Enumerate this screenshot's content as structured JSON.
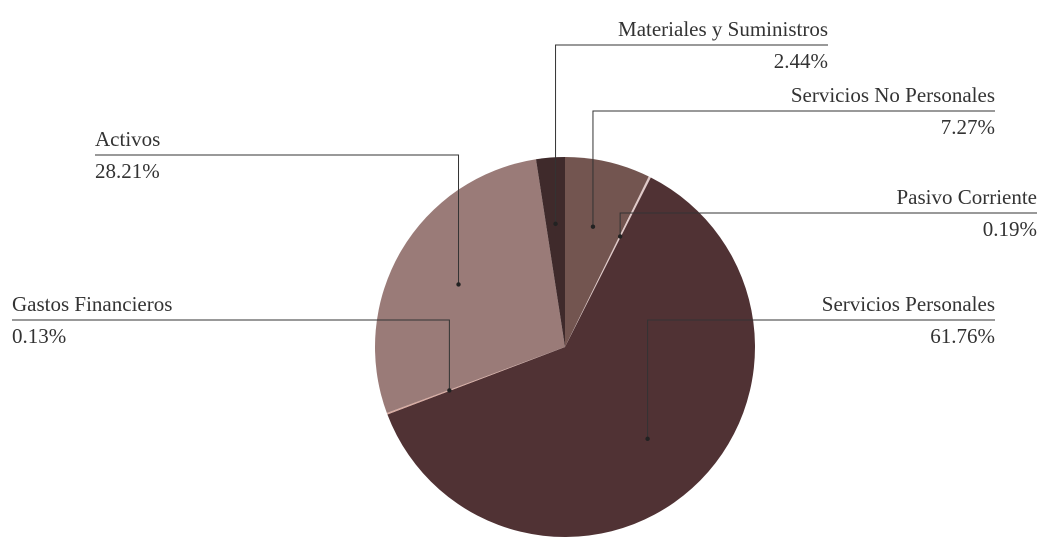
{
  "chart_data": {
    "type": "pie",
    "categories": [
      "Servicios No Personales",
      "Pasivo Corriente",
      "Servicios Personales",
      "Gastos Financieros",
      "Activos",
      "Materiales y Suministros"
    ],
    "values": [
      7.27,
      0.19,
      61.76,
      0.13,
      28.21,
      2.44
    ],
    "value_labels": [
      "7.27%",
      "0.19%",
      "61.76%",
      "0.13%",
      "28.21%",
      "2.44%"
    ],
    "colors": [
      "#735550",
      "#e0c9c8",
      "#503234",
      "#d9aba1",
      "#9a7b78",
      "#3f2a2b"
    ]
  }
}
